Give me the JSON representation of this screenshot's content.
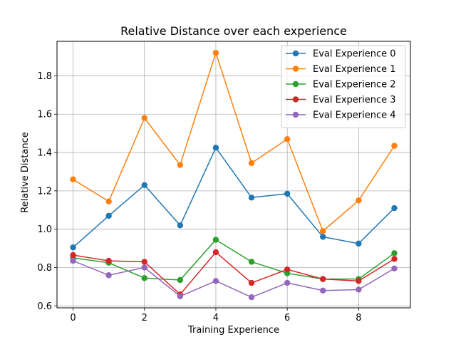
{
  "chart_data": {
    "type": "line",
    "title": "Relative Distance over each experience",
    "xlabel": "Training Experience",
    "ylabel": "Relative Distance",
    "x": [
      0,
      1,
      2,
      3,
      4,
      5,
      6,
      7,
      8,
      9
    ],
    "xlim": [
      -0.45,
      9.45
    ],
    "ylim": [
      0.59,
      1.98
    ],
    "xticks": [
      0,
      2,
      4,
      6,
      8
    ],
    "yticks": [
      0.6,
      0.8,
      1.0,
      1.2,
      1.4,
      1.6,
      1.8
    ],
    "ytick_labels": [
      "0.6",
      "0.8",
      "1.0",
      "1.2",
      "1.4",
      "1.6",
      "1.8"
    ],
    "grid": true,
    "legend_position": "top-right",
    "series": [
      {
        "name": "Eval Experience 0",
        "color": "#1f77b4",
        "values": [
          0.905,
          1.07,
          1.23,
          1.02,
          1.425,
          1.165,
          1.185,
          0.96,
          0.925,
          1.11
        ]
      },
      {
        "name": "Eval Experience 1",
        "color": "#ff7f0e",
        "values": [
          1.26,
          1.145,
          1.58,
          1.335,
          1.92,
          1.345,
          1.47,
          0.99,
          1.15,
          1.435
        ]
      },
      {
        "name": "Eval Experience 2",
        "color": "#2ca02c",
        "values": [
          0.85,
          0.825,
          0.745,
          0.735,
          0.945,
          0.83,
          0.77,
          0.74,
          0.74,
          0.875
        ]
      },
      {
        "name": "Eval Experience 3",
        "color": "#d62728",
        "values": [
          0.865,
          0.835,
          0.83,
          0.66,
          0.88,
          0.72,
          0.79,
          0.74,
          0.73,
          0.845
        ]
      },
      {
        "name": "Eval Experience 4",
        "color": "#9467bd",
        "values": [
          0.835,
          0.76,
          0.8,
          0.65,
          0.73,
          0.645,
          0.72,
          0.68,
          0.685,
          0.795
        ]
      }
    ]
  }
}
